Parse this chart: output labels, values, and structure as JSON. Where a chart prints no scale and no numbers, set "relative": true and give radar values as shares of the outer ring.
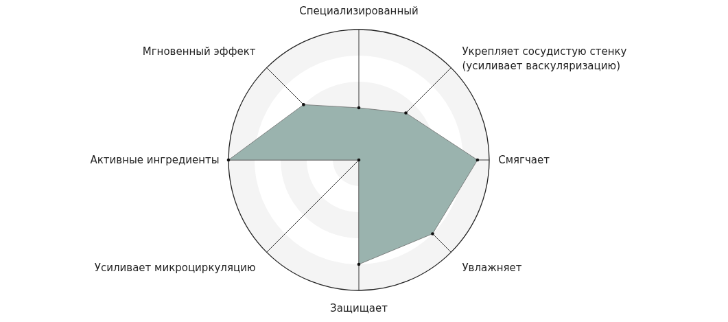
{
  "chart_data": {
    "type": "radar",
    "relative": true,
    "grid": true,
    "marker": "circle",
    "categories": [
      "Специализированный",
      "Укрепляет сосудистую стенку (усиливает васкуляризацию)",
      "Смягчает",
      "Увлажняет",
      "Защищает",
      "Усиливает микроциркуляцию",
      "Активные ингредиенты",
      "Мгновенный эффект"
    ],
    "series": [
      {
        "color": "#9ab3ae",
        "values": [
          0.4,
          0.51,
          0.91,
          0.8,
          0.8,
          0,
          1,
          0.6
        ]
      }
    ]
  }
}
